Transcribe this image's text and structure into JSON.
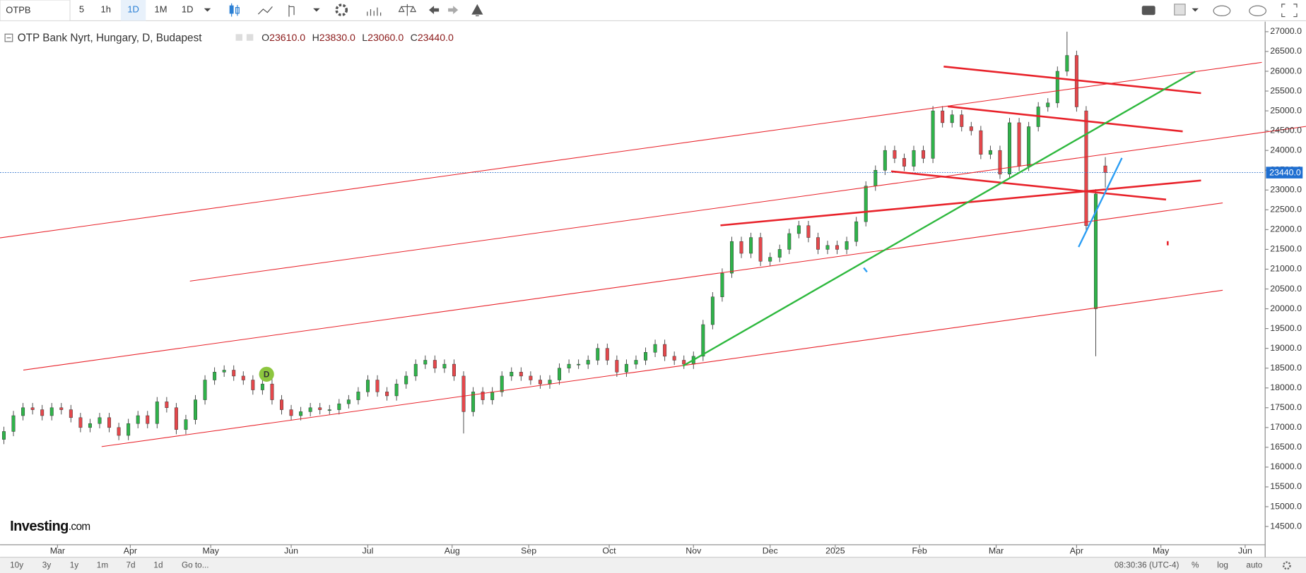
{
  "toolbar": {
    "symbol": "OTPB",
    "intervals": [
      "5",
      "1h",
      "1D",
      "1M",
      "1D"
    ]
  },
  "chart_data": {
    "type": "candlestick",
    "title": "OTP Bank Nyrt, Hungary, D, Budapest",
    "legend_values": [
      {
        "key": "O",
        "value": "23610.0"
      },
      {
        "key": "H",
        "value": "23830.0"
      },
      {
        "key": "L",
        "value": "23060.0"
      },
      {
        "key": "C",
        "value": "23440.0"
      }
    ],
    "marker": "D",
    "up_color": "#2fb34a",
    "down_color": "#e5474b",
    "x": [
      1,
      3.5,
      6,
      8.5,
      11,
      13.5,
      16,
      18.5,
      21,
      23.5,
      26,
      28.5,
      31,
      33.5,
      36,
      38.5,
      41,
      43.5,
      46,
      48.5,
      51,
      53.5,
      56,
      58.5,
      61,
      63.5,
      66,
      68.5,
      71,
      73.5,
      76,
      78.5,
      81,
      83.5,
      86,
      88.5,
      91,
      93.5,
      96,
      98.5,
      101,
      103.5,
      106,
      108.5,
      111,
      113.5,
      116,
      118.5,
      121,
      123.5,
      126,
      128.5,
      131,
      133.5,
      136,
      138.5,
      141,
      143.5,
      146,
      148.5,
      151,
      153.5,
      156,
      158.5,
      161,
      163.5,
      166,
      168.5,
      171,
      173.5,
      176,
      178.5,
      181,
      183.5,
      186,
      188.5,
      191,
      193.5,
      196,
      198.5,
      201,
      203.5,
      206,
      208.5,
      211,
      213.5,
      216,
      218.5,
      221,
      223.5,
      226,
      228.5,
      231,
      233.5,
      236,
      238.5,
      241,
      243.5,
      246,
      248.5,
      251,
      253.5,
      256,
      258.5,
      261,
      263.5,
      266,
      268.5,
      271,
      273.5,
      276,
      278.5,
      281,
      283.5,
      286,
      288.5
    ],
    "open": [
      16700,
      16900,
      17300,
      17500,
      17450,
      17300,
      17500,
      17450,
      17250,
      17000,
      17100,
      17250,
      17000,
      16800,
      17100,
      17300,
      17100,
      17650,
      17500,
      16950,
      17200,
      17700,
      18200,
      18400,
      18450,
      18300,
      18200,
      17950,
      18100,
      17700,
      17450,
      17300,
      17400,
      17500,
      17450,
      17450,
      17600,
      17700,
      17900,
      18200,
      17900,
      17800,
      18100,
      18300,
      18600,
      18700,
      18500,
      18600,
      18300,
      17400,
      17900,
      17700,
      17900,
      18300,
      18400,
      18300,
      18200,
      18100,
      18200,
      18500,
      18600,
      18600,
      18700,
      19000,
      18700,
      18400,
      18600,
      18700,
      18900,
      19100,
      18800,
      18700,
      18600,
      18800,
      19600,
      20300,
      20900,
      21700,
      21400,
      21800,
      21200,
      21300,
      21500,
      21900,
      22100,
      21800,
      21500,
      21600,
      21500,
      21700,
      22200,
      23100,
      23500,
      24000,
      23800,
      23600,
      24000,
      23800,
      25000,
      24700,
      24900,
      24600,
      24500,
      23900,
      24000,
      23400,
      24700,
      23600,
      24600,
      25100,
      25200,
      26000,
      26400,
      25000,
      20000,
      23610
    ],
    "high": [
      17020,
      17420,
      17620,
      17620,
      17570,
      17620,
      17620,
      17570,
      17370,
      17220,
      17370,
      17370,
      17120,
      17220,
      17420,
      17420,
      17770,
      17770,
      17620,
      17320,
      17820,
      18320,
      18520,
      18570,
      18570,
      18420,
      18320,
      18220,
      18220,
      17820,
      17570,
      17520,
      17620,
      17620,
      17570,
      17720,
      17820,
      18020,
      18320,
      18320,
      18020,
      18220,
      18420,
      18720,
      18820,
      18820,
      18720,
      18720,
      18420,
      18020,
      18020,
      18020,
      18420,
      18520,
      18520,
      18420,
      18320,
      18320,
      18620,
      18720,
      18720,
      18820,
      19120,
      19120,
      18820,
      18720,
      18820,
      19020,
      19220,
      19220,
      18920,
      18820,
      18920,
      19720,
      20420,
      21020,
      21820,
      21820,
      21920,
      21920,
      21420,
      21620,
      22020,
      22220,
      22220,
      21920,
      21720,
      21720,
      21820,
      22320,
      23220,
      23620,
      24120,
      24120,
      23920,
      24120,
      24120,
      25120,
      25120,
      25020,
      25020,
      24720,
      24620,
      24120,
      24120,
      24820,
      24820,
      24720,
      25220,
      25320,
      26120,
      27000,
      26520,
      25120,
      23020,
      23830
    ],
    "low": [
      16580,
      16780,
      17180,
      17330,
      17180,
      17180,
      17330,
      17130,
      16880,
      16880,
      16980,
      16880,
      16680,
      16680,
      16980,
      16980,
      16980,
      17380,
      16830,
      16830,
      17080,
      17580,
      18080,
      18280,
      18180,
      18080,
      17830,
      17830,
      17580,
      17330,
      17180,
      17180,
      17280,
      17330,
      17330,
      17330,
      17480,
      17580,
      17780,
      17780,
      17680,
      17680,
      17980,
      18180,
      18480,
      18380,
      18380,
      18180,
      16850,
      17280,
      17580,
      17580,
      17780,
      18180,
      18180,
      18080,
      17980,
      17980,
      18080,
      18380,
      18480,
      18480,
      18580,
      18580,
      18280,
      18280,
      18480,
      18580,
      18780,
      18680,
      18580,
      18480,
      18480,
      18680,
      19480,
      20180,
      20780,
      21280,
      21280,
      21080,
      21080,
      21180,
      21380,
      21780,
      21680,
      21380,
      21380,
      21380,
      21380,
      21580,
      22080,
      22980,
      23380,
      23680,
      23480,
      23480,
      23680,
      23680,
      24580,
      24580,
      24480,
      24380,
      23780,
      23780,
      23280,
      23280,
      23480,
      23480,
      24480,
      24980,
      25080,
      25880,
      24980,
      21980,
      18800,
      23060
    ],
    "close": [
      16900,
      17300,
      17500,
      17450,
      17300,
      17500,
      17450,
      17250,
      17000,
      17100,
      17250,
      17000,
      16800,
      17100,
      17300,
      17100,
      17650,
      17500,
      16950,
      17200,
      17700,
      18200,
      18400,
      18450,
      18300,
      18200,
      17950,
      18100,
      17700,
      17450,
      17300,
      17400,
      17500,
      17450,
      17450,
      17600,
      17700,
      17900,
      18200,
      17900,
      17800,
      18100,
      18300,
      18600,
      18700,
      18500,
      18600,
      18300,
      17400,
      17900,
      17700,
      17900,
      18300,
      18400,
      18300,
      18200,
      18100,
      18200,
      18500,
      18600,
      18600,
      18700,
      19000,
      18700,
      18400,
      18600,
      18700,
      18900,
      19100,
      18800,
      18700,
      18600,
      18800,
      19600,
      20300,
      20900,
      21700,
      21400,
      21800,
      21200,
      21300,
      21500,
      21900,
      22100,
      21800,
      21500,
      21600,
      21500,
      21700,
      22200,
      23100,
      23500,
      24000,
      23800,
      23600,
      24000,
      23800,
      25000,
      24700,
      24900,
      24600,
      24500,
      23900,
      24000,
      23400,
      24700,
      23600,
      24600,
      25100,
      25200,
      26000,
      26400,
      25100,
      22100,
      22900,
      23440
    ],
    "xlim": [
      0,
      330
    ],
    "xticks": [
      {
        "value": 15,
        "label": "Mar"
      },
      {
        "value": 34,
        "label": "Apr"
      },
      {
        "value": 55,
        "label": "May"
      },
      {
        "value": 76,
        "label": "Jun"
      },
      {
        "value": 96,
        "label": "Jul"
      },
      {
        "value": 118,
        "label": "Aug"
      },
      {
        "value": 138,
        "label": "Sep"
      },
      {
        "value": 159,
        "label": "Oct"
      },
      {
        "value": 181,
        "label": "Nov"
      },
      {
        "value": 201,
        "label": "Dec"
      },
      {
        "value": 218,
        "label": "2025"
      },
      {
        "value": 240,
        "label": "Feb"
      },
      {
        "value": 260,
        "label": "Mar"
      },
      {
        "value": 281,
        "label": "Apr"
      },
      {
        "value": 303,
        "label": "May"
      },
      {
        "value": 325,
        "label": "Jun"
      }
    ],
    "ylim": [
      14060,
      27170
    ],
    "yticks": [
      {
        "value": 14500,
        "label": "14500.0"
      },
      {
        "value": 15000,
        "label": "15000.0"
      },
      {
        "value": 15500,
        "label": "15500.0"
      },
      {
        "value": 16000,
        "label": "16000.0"
      },
      {
        "value": 16500,
        "label": "16500.0"
      },
      {
        "value": 17000,
        "label": "17000.0"
      },
      {
        "value": 17500,
        "label": "17500.0"
      },
      {
        "value": 18000,
        "label": "18000.0"
      },
      {
        "value": 18500,
        "label": "18500.0"
      },
      {
        "value": 19000,
        "label": "19000.0"
      },
      {
        "value": 19500,
        "label": "19500.0"
      },
      {
        "value": 20000,
        "label": "20000.0"
      },
      {
        "value": 20500,
        "label": "20500.0"
      },
      {
        "value": 21000,
        "label": "21000.0"
      },
      {
        "value": 21500,
        "label": "21500.0"
      },
      {
        "value": 22000,
        "label": "22000.0"
      },
      {
        "value": 22500,
        "label": "22500.0"
      },
      {
        "value": 23000,
        "label": "23000.0"
      },
      {
        "value": 23500,
        "label": "23500.0"
      },
      {
        "value": 24000,
        "label": "24000.0"
      },
      {
        "value": 24500,
        "label": "24500.0"
      },
      {
        "value": 25000,
        "label": "25000.0"
      },
      {
        "value": 25500,
        "label": "25500.0"
      },
      {
        "value": 26000,
        "label": "26000.0"
      },
      {
        "value": 26500,
        "label": "26500.0"
      },
      {
        "value": 27000,
        "label": "27000.0"
      }
    ],
    "last_price": {
      "value": 23440,
      "label": "23440.0"
    }
  },
  "branding": {
    "name": "Investing",
    "suffix": ".com"
  },
  "footer": {
    "ranges": [
      "10y",
      "3y",
      "1y",
      "1m",
      "7d",
      "1d"
    ],
    "goto": "Go to...",
    "time": "08:30:36 (UTC-4)",
    "options": [
      "%",
      "log",
      "auto"
    ]
  }
}
